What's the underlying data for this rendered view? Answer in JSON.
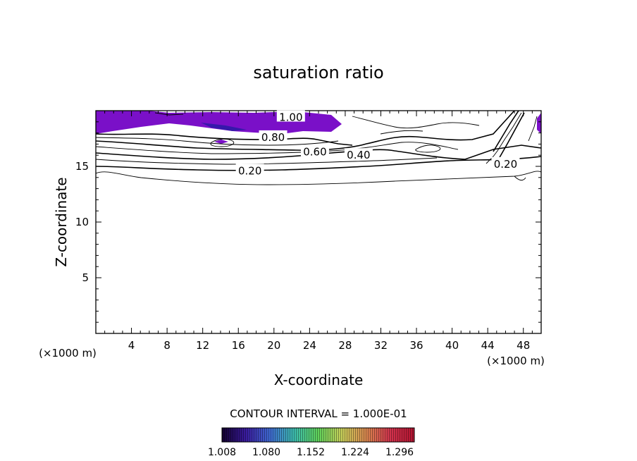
{
  "chart_data": {
    "type": "contour",
    "title": "saturation ratio",
    "xlabel": "X-coordinate",
    "ylabel": "Z-coordinate",
    "x_unit": "(×1000 m)",
    "y_unit": "(×1000 m)",
    "xlim": [
      0,
      50
    ],
    "ylim": [
      0,
      20
    ],
    "x_ticks": [
      4,
      8,
      12,
      16,
      20,
      24,
      28,
      32,
      36,
      40,
      44,
      48
    ],
    "y_ticks": [
      5,
      10,
      15
    ],
    "x_minor_step": 1,
    "y_minor_step": 1,
    "contour_interval_text": "CONTOUR INTERVAL = 1.000E-01",
    "contour_labels": [
      {
        "text": "1.00",
        "x": 21.9,
        "y": 19.4
      },
      {
        "text": "0.80",
        "x": 19.9,
        "y": 17.6
      },
      {
        "text": "0.60",
        "x": 24.6,
        "y": 16.3
      },
      {
        "text": "0.40",
        "x": 29.5,
        "y": 16.0
      },
      {
        "text": "0.20",
        "x": 17.3,
        "y": 14.6
      },
      {
        "text": "0.20",
        "x": 46.0,
        "y": 15.2
      }
    ],
    "colorbar": {
      "tick_labels": [
        "1.008",
        "1.080",
        "1.152",
        "1.224",
        "1.296"
      ],
      "range": [
        1.008,
        1.32
      ],
      "colors": [
        "#12002e",
        "#3a1b9e",
        "#3f6ad2",
        "#3cbcae",
        "#5fd15a",
        "#c9cf5a",
        "#d9874f",
        "#d2334d",
        "#b21330"
      ]
    },
    "shaded_color": "#7a10c8"
  }
}
